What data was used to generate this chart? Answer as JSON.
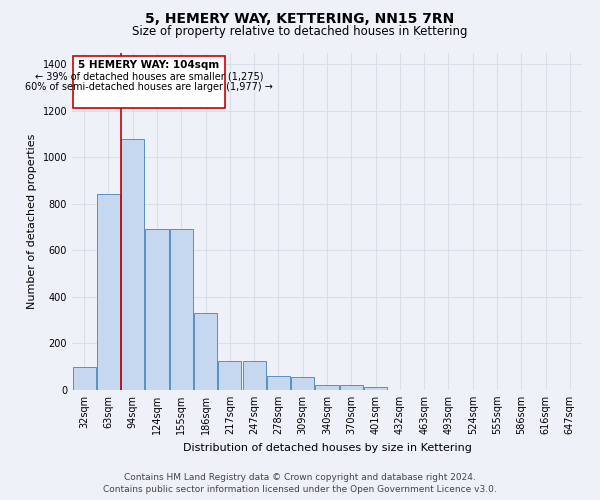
{
  "title": "5, HEMERY WAY, KETTERING, NN15 7RN",
  "subtitle": "Size of property relative to detached houses in Kettering",
  "xlabel": "Distribution of detached houses by size in Kettering",
  "ylabel": "Number of detached properties",
  "categories": [
    "32sqm",
    "63sqm",
    "94sqm",
    "124sqm",
    "155sqm",
    "186sqm",
    "217sqm",
    "247sqm",
    "278sqm",
    "309sqm",
    "340sqm",
    "370sqm",
    "401sqm",
    "432sqm",
    "463sqm",
    "493sqm",
    "524sqm",
    "555sqm",
    "586sqm",
    "616sqm",
    "647sqm"
  ],
  "values": [
    100,
    840,
    1080,
    690,
    690,
    330,
    125,
    125,
    60,
    55,
    20,
    20,
    15,
    0,
    0,
    0,
    0,
    0,
    0,
    0,
    0
  ],
  "bar_color": "#c5d8f0",
  "bar_edge_color": "#5a8fc0",
  "annotation_line_color": "#cc0000",
  "annotation_text_line1": "5 HEMERY WAY: 104sqm",
  "annotation_text_line2": "← 39% of detached houses are smaller (1,275)",
  "annotation_text_line3": "60% of semi-detached houses are larger (1,977) →",
  "annotation_box_color": "#cc0000",
  "ylim": [
    0,
    1450
  ],
  "yticks": [
    0,
    200,
    400,
    600,
    800,
    1000,
    1200,
    1400
  ],
  "footer_line1": "Contains HM Land Registry data © Crown copyright and database right 2024.",
  "footer_line2": "Contains public sector information licensed under the Open Government Licence v3.0.",
  "bg_color": "#eef2f8",
  "plot_bg_color": "#eef2f8",
  "grid_color": "#d8dfe8",
  "title_fontsize": 10,
  "subtitle_fontsize": 8.5,
  "axis_label_fontsize": 8,
  "tick_fontsize": 7,
  "footer_fontsize": 6.5
}
